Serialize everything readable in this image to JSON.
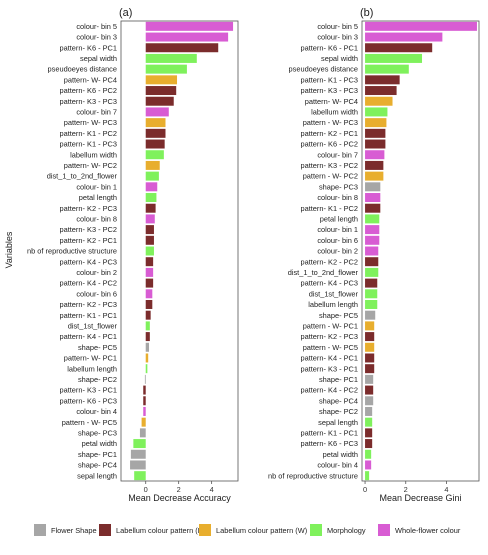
{
  "figure": {
    "ylabel": "Variables",
    "legend": {
      "position": "bottom",
      "items": [
        {
          "key": "shape",
          "label": "Flower Shape",
          "color": "#a6a6a6"
        },
        {
          "key": "K",
          "label": "Labellum colour pattern (K)",
          "color": "#7b2c2c"
        },
        {
          "key": "W",
          "label": "Labellum colour pattern (W)",
          "color": "#e8ae2e"
        },
        {
          "key": "morph",
          "label": "Morphology",
          "color": "#7ff15c"
        },
        {
          "key": "colour",
          "label": "Whole-flower colour",
          "color": "#d85cd3"
        }
      ]
    }
  },
  "chart_data": [
    {
      "type": "bar",
      "orientation": "horizontal",
      "panel_label": "(a)",
      "xlabel": "Mean Decrease Accuracy",
      "ylabel": "Variables",
      "xlim": [
        -1.5,
        5.6
      ],
      "xticks": [
        0,
        2,
        4
      ],
      "grid": false,
      "categories": [
        "colour- bin 5",
        "colour- bin 3",
        "pattern- K6 - PC1",
        "sepal width",
        "pseudoeyes distance",
        "pattern- W- PC4",
        "pattern- K6 - PC2",
        "pattern- K3 - PC3",
        "colour- bin 7",
        "pattern- W- PC3",
        "pattern- K1 - PC2",
        "pattern- K1 - PC3",
        "labellum width",
        "pattern- W- PC2",
        "dist_1_to_2nd_flower",
        "colour- bin 1",
        "petal length",
        "pattern- K2 - PC3",
        "colour- bin 8",
        "pattern- K3 - PC2",
        "pattern- K2 - PC1",
        "nb of reproductive structure",
        "pattern- K4 - PC3",
        "colour- bin 2",
        "pattern- K4 - PC2",
        "colour- bin 6",
        "pattern- K2 - PC3",
        "pattern- K1 - PC1",
        "dist_1st_flower",
        "pattern- K4 - PC1",
        "shape- PC5",
        "pattern- W- PC1",
        "labellum length",
        "shape- PC2",
        "pattern- K3 - PC1",
        "pattern- K6 - PC3",
        "colour- bin 4",
        "pattern - W- PC5",
        "shape- PC3",
        "petal width",
        "shape- PC1",
        "shape- PC4",
        "sepal length"
      ],
      "groups": [
        "colour",
        "colour",
        "K",
        "morph",
        "morph",
        "W",
        "K",
        "K",
        "colour",
        "W",
        "K",
        "K",
        "morph",
        "W",
        "morph",
        "colour",
        "morph",
        "K",
        "colour",
        "K",
        "K",
        "morph",
        "K",
        "colour",
        "K",
        "colour",
        "K",
        "K",
        "morph",
        "K",
        "shape",
        "W",
        "morph",
        "shape",
        "K",
        "K",
        "colour",
        "W",
        "shape",
        "morph",
        "shape",
        "shape",
        "morph"
      ],
      "values": [
        5.3,
        5.0,
        4.4,
        3.1,
        2.5,
        1.9,
        1.85,
        1.7,
        1.4,
        1.2,
        1.2,
        1.15,
        1.1,
        0.85,
        0.8,
        0.7,
        0.65,
        0.6,
        0.55,
        0.5,
        0.5,
        0.5,
        0.45,
        0.45,
        0.45,
        0.4,
        0.4,
        0.3,
        0.25,
        0.25,
        0.2,
        0.15,
        0.1,
        -0.05,
        -0.15,
        -0.15,
        -0.15,
        -0.25,
        -0.35,
        -0.75,
        -0.9,
        -0.95,
        -0.7
      ]
    },
    {
      "type": "bar",
      "orientation": "horizontal",
      "panel_label": "(b)",
      "xlabel": "Mean Decrease Gini",
      "xlim": [
        -0.15,
        5.6
      ],
      "xticks": [
        0,
        2,
        4
      ],
      "grid": false,
      "categories": [
        "colour- bin 5",
        "colour- bin 3",
        "pattern- K6 - PC1",
        "sepal width",
        "pseudoeyes distance",
        "pattern- K1 - PC3",
        "pattern- K3 - PC3",
        "pattern- W- PC4",
        "labellum width",
        "pattern - W- PC3",
        "pattern- K2 - PC1",
        "pattern- K6 - PC2",
        "colour- bin 7",
        "pattern- K3 - PC2",
        "pattern - W- PC2",
        "shape- PC3",
        "colour- bin 8",
        "pattern- K1 - PC2",
        "petal length",
        "colour- bin 1",
        "colour- bin 6",
        "colour- bin 2",
        "pattern- K2 - PC2",
        "dist_1_to_2nd_flower",
        "pattern- K4 - PC3",
        "dist_1st_flower",
        "labellum length",
        "shape- PC5",
        "pattern - W- PC1",
        "pattern- K2 - PC3",
        "pattern - W- PC5",
        "pattern- K4 - PC1",
        "pattern- K3 - PC1",
        "shape- PC1",
        "pattern- K4 - PC2",
        "shape- PC4",
        "shape- PC2",
        "sepal length",
        "pattern- K1 - PC1",
        "pattern- K6 - PC3",
        "petal width",
        "colour- bin 4",
        "nb of reproductive structure"
      ],
      "groups": [
        "colour",
        "colour",
        "K",
        "morph",
        "morph",
        "K",
        "K",
        "W",
        "morph",
        "W",
        "K",
        "K",
        "colour",
        "K",
        "W",
        "shape",
        "colour",
        "K",
        "morph",
        "colour",
        "colour",
        "colour",
        "K",
        "morph",
        "K",
        "morph",
        "morph",
        "shape",
        "W",
        "K",
        "W",
        "K",
        "K",
        "shape",
        "K",
        "shape",
        "shape",
        "morph",
        "K",
        "K",
        "morph",
        "colour",
        "morph"
      ],
      "values": [
        5.5,
        3.8,
        3.3,
        2.8,
        2.15,
        1.7,
        1.55,
        1.35,
        1.1,
        1.05,
        1.0,
        1.0,
        0.95,
        0.9,
        0.9,
        0.75,
        0.75,
        0.75,
        0.7,
        0.7,
        0.7,
        0.65,
        0.65,
        0.65,
        0.6,
        0.6,
        0.6,
        0.5,
        0.45,
        0.45,
        0.45,
        0.45,
        0.45,
        0.4,
        0.4,
        0.4,
        0.35,
        0.35,
        0.35,
        0.35,
        0.3,
        0.3,
        0.2
      ]
    }
  ]
}
